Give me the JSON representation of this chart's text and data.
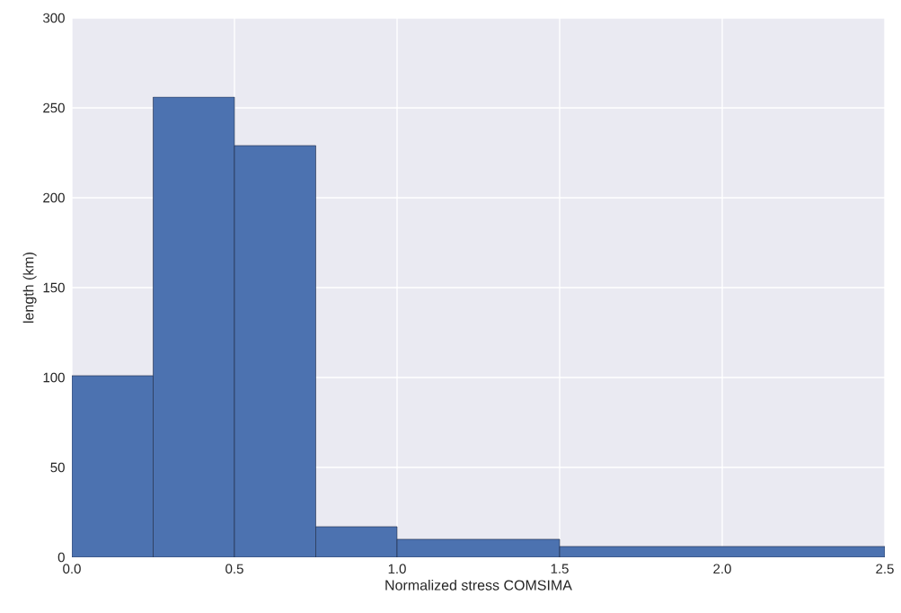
{
  "chart_data": {
    "type": "histogram",
    "xlabel": "Normalized stress COMSIMA",
    "ylabel": "length (km)",
    "bins": [
      0,
      0.25,
      0.5,
      0.75,
      1.0,
      1.5,
      2.5
    ],
    "values": [
      101,
      256,
      229,
      17,
      10,
      6
    ],
    "color": "#4c72b0",
    "xlim": [
      0,
      2.5
    ],
    "ylim": [
      0,
      300
    ],
    "xticks": [
      {
        "value": 0,
        "label": "0.0"
      },
      {
        "value": 0.5,
        "label": "0.5"
      },
      {
        "value": 1.0,
        "label": "1.0"
      },
      {
        "value": 1.5,
        "label": "1.5"
      },
      {
        "value": 2.0,
        "label": "2.0"
      },
      {
        "value": 2.5,
        "label": "2.5"
      }
    ],
    "yticks": [
      0,
      50,
      100,
      150,
      200,
      250,
      300
    ],
    "grid": true
  }
}
